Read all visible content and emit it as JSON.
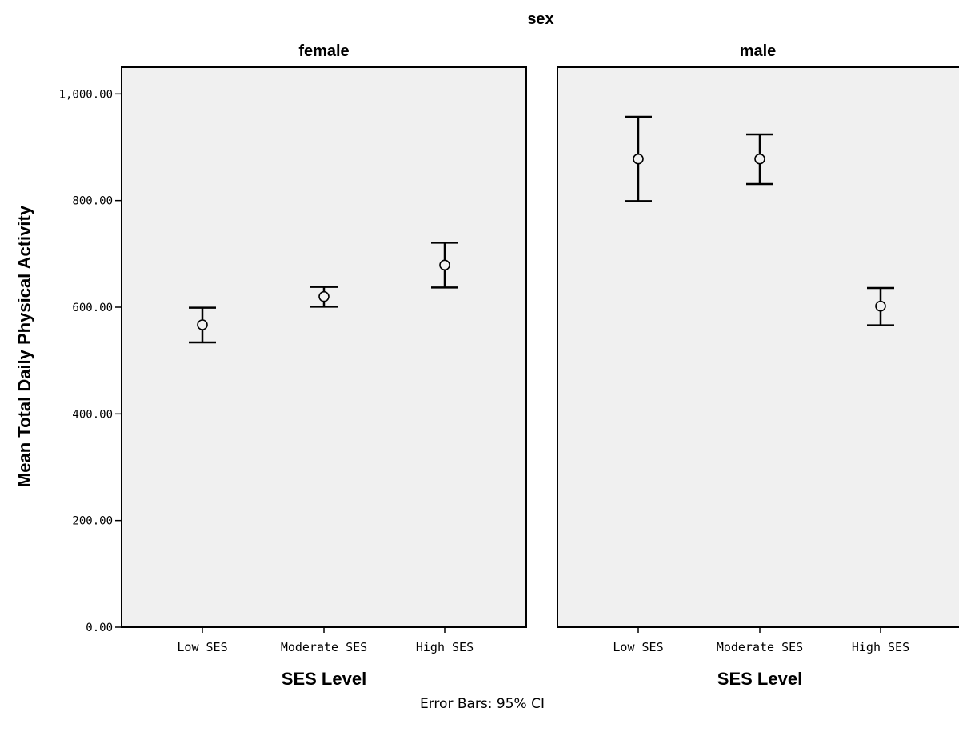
{
  "chart_data": {
    "type": "scatter",
    "facet_title": "sex",
    "ylabel": "Mean Total Daily Physical Activity",
    "xlabel": "SES Level",
    "ylim": [
      0,
      1050
    ],
    "yticks": [
      0,
      200,
      400,
      600,
      800,
      1000
    ],
    "ytick_labels": [
      "0.00",
      "200.00",
      "400.00",
      "600.00",
      "800.00",
      "1,000.00"
    ],
    "categories": [
      "Low SES",
      "Moderate SES",
      "High SES"
    ],
    "grid": false,
    "note": "Error Bars: 95% CI",
    "panels": [
      {
        "name": "female",
        "points": [
          {
            "category": "Low SES",
            "mean": 567,
            "ci_low": 534,
            "ci_high": 599
          },
          {
            "category": "Moderate SES",
            "mean": 620,
            "ci_low": 601,
            "ci_high": 638
          },
          {
            "category": "High SES",
            "mean": 679,
            "ci_low": 637,
            "ci_high": 721
          }
        ]
      },
      {
        "name": "male",
        "points": [
          {
            "category": "Low SES",
            "mean": 878,
            "ci_low": 799,
            "ci_high": 957
          },
          {
            "category": "Moderate SES",
            "mean": 878,
            "ci_low": 831,
            "ci_high": 924
          },
          {
            "category": "High SES",
            "mean": 602,
            "ci_low": 566,
            "ci_high": 636
          }
        ]
      }
    ],
    "colors": {
      "panel_background": "#f0f0f0",
      "marks": "#000000"
    }
  }
}
